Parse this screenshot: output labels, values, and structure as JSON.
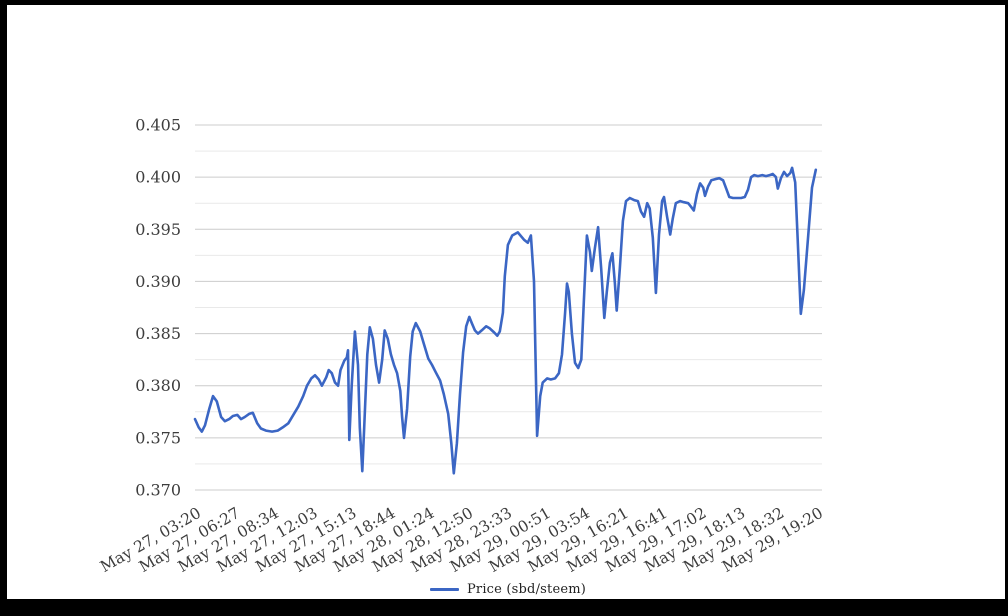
{
  "frame": {
    "color": "#000000",
    "background": "#ffffff"
  },
  "legend": {
    "label": "Price (sbd/steem)",
    "swatch_color": "#3b66c4"
  },
  "chart_data": {
    "type": "line",
    "title": "",
    "xlabel": "",
    "ylabel": "",
    "legend_position": "bottom",
    "grid": {
      "on": true,
      "major_color": "#cccccc",
      "minor_color": "#e9e9e9",
      "minor_midpoints": true
    },
    "axis_text_color": "#3d3d3d",
    "ylim": [
      0.37,
      0.405
    ],
    "y_tick_values": [
      0.405,
      0.4,
      0.395,
      0.39,
      0.385,
      0.38,
      0.375,
      0.37
    ],
    "y_tick_labels": [
      "0.405",
      "0.400",
      "0.395",
      "0.390",
      "0.385",
      "0.380",
      "0.375",
      "0.370"
    ],
    "x_tick_labels": [
      "May 27, 03:20",
      "May 27, 06:27",
      "May 27, 08:34",
      "May 27, 12:03",
      "May 27, 15:13",
      "May 27, 18:44",
      "May 28, 01:24",
      "May 28, 12:50",
      "May 28, 23:33",
      "May 29, 00:51",
      "May 29, 03:54",
      "May 29, 16:21",
      "May 29, 16:41",
      "May 29, 17:02",
      "May 29, 18:13",
      "May 29, 18:32",
      "May 29, 19:20"
    ],
    "series": [
      {
        "name": "Price (sbd/steem)",
        "color": "#3b66c4",
        "points": [
          [
            0.0,
            0.3768
          ],
          [
            0.006,
            0.376
          ],
          [
            0.011,
            0.3756
          ],
          [
            0.016,
            0.3762
          ],
          [
            0.023,
            0.3778
          ],
          [
            0.029,
            0.379
          ],
          [
            0.035,
            0.3785
          ],
          [
            0.042,
            0.377
          ],
          [
            0.048,
            0.3766
          ],
          [
            0.055,
            0.3768
          ],
          [
            0.061,
            0.3771
          ],
          [
            0.068,
            0.3772
          ],
          [
            0.074,
            0.3768
          ],
          [
            0.08,
            0.377
          ],
          [
            0.087,
            0.3773
          ],
          [
            0.093,
            0.3774
          ],
          [
            0.1,
            0.3764
          ],
          [
            0.106,
            0.3759
          ],
          [
            0.114,
            0.3757
          ],
          [
            0.124,
            0.3756
          ],
          [
            0.133,
            0.3757
          ],
          [
            0.141,
            0.376
          ],
          [
            0.15,
            0.3764
          ],
          [
            0.158,
            0.3772
          ],
          [
            0.166,
            0.378
          ],
          [
            0.174,
            0.379
          ],
          [
            0.18,
            0.38
          ],
          [
            0.187,
            0.3807
          ],
          [
            0.193,
            0.381
          ],
          [
            0.199,
            0.3806
          ],
          [
            0.204,
            0.38
          ],
          [
            0.211,
            0.3808
          ],
          [
            0.215,
            0.3815
          ],
          [
            0.22,
            0.3812
          ],
          [
            0.225,
            0.3803
          ],
          [
            0.23,
            0.38
          ],
          [
            0.234,
            0.3815
          ],
          [
            0.24,
            0.3824
          ],
          [
            0.244,
            0.3827
          ],
          [
            0.246,
            0.3834
          ],
          [
            0.248,
            0.3748
          ],
          [
            0.252,
            0.38
          ],
          [
            0.257,
            0.3852
          ],
          [
            0.262,
            0.382
          ],
          [
            0.265,
            0.376
          ],
          [
            0.269,
            0.3718
          ],
          [
            0.272,
            0.376
          ],
          [
            0.277,
            0.383
          ],
          [
            0.281,
            0.3856
          ],
          [
            0.286,
            0.3845
          ],
          [
            0.291,
            0.382
          ],
          [
            0.296,
            0.3803
          ],
          [
            0.301,
            0.3825
          ],
          [
            0.305,
            0.3853
          ],
          [
            0.31,
            0.3845
          ],
          [
            0.315,
            0.383
          ],
          [
            0.32,
            0.382
          ],
          [
            0.325,
            0.3812
          ],
          [
            0.33,
            0.3795
          ],
          [
            0.333,
            0.377
          ],
          [
            0.336,
            0.375
          ],
          [
            0.341,
            0.3778
          ],
          [
            0.346,
            0.3828
          ],
          [
            0.35,
            0.3852
          ],
          [
            0.355,
            0.386
          ],
          [
            0.362,
            0.3852
          ],
          [
            0.368,
            0.384
          ],
          [
            0.375,
            0.3826
          ],
          [
            0.381,
            0.382
          ],
          [
            0.387,
            0.3813
          ],
          [
            0.394,
            0.3805
          ],
          [
            0.4,
            0.3792
          ],
          [
            0.407,
            0.3773
          ],
          [
            0.412,
            0.3745
          ],
          [
            0.416,
            0.3716
          ],
          [
            0.421,
            0.3745
          ],
          [
            0.426,
            0.3792
          ],
          [
            0.431,
            0.3832
          ],
          [
            0.436,
            0.3857
          ],
          [
            0.441,
            0.3866
          ],
          [
            0.445,
            0.386
          ],
          [
            0.45,
            0.3853
          ],
          [
            0.455,
            0.385
          ],
          [
            0.461,
            0.3853
          ],
          [
            0.468,
            0.3857
          ],
          [
            0.474,
            0.3855
          ],
          [
            0.481,
            0.3851
          ],
          [
            0.486,
            0.3848
          ],
          [
            0.49,
            0.3852
          ],
          [
            0.495,
            0.387
          ],
          [
            0.498,
            0.3905
          ],
          [
            0.503,
            0.3935
          ],
          [
            0.51,
            0.3944
          ],
          [
            0.519,
            0.3947
          ],
          [
            0.529,
            0.394
          ],
          [
            0.535,
            0.3937
          ],
          [
            0.54,
            0.3944
          ],
          [
            0.545,
            0.39
          ],
          [
            0.55,
            0.3752
          ],
          [
            0.555,
            0.379
          ],
          [
            0.559,
            0.3803
          ],
          [
            0.566,
            0.3807
          ],
          [
            0.572,
            0.3806
          ],
          [
            0.579,
            0.3807
          ],
          [
            0.585,
            0.3812
          ],
          [
            0.59,
            0.383
          ],
          [
            0.595,
            0.387
          ],
          [
            0.598,
            0.3898
          ],
          [
            0.601,
            0.389
          ],
          [
            0.606,
            0.385
          ],
          [
            0.611,
            0.3822
          ],
          [
            0.616,
            0.3817
          ],
          [
            0.621,
            0.3825
          ],
          [
            0.625,
            0.388
          ],
          [
            0.63,
            0.3944
          ],
          [
            0.635,
            0.3928
          ],
          [
            0.638,
            0.391
          ],
          [
            0.643,
            0.3932
          ],
          [
            0.648,
            0.3952
          ],
          [
            0.653,
            0.3912
          ],
          [
            0.658,
            0.3865
          ],
          [
            0.662,
            0.389
          ],
          [
            0.667,
            0.3918
          ],
          [
            0.671,
            0.3927
          ],
          [
            0.675,
            0.3898
          ],
          [
            0.678,
            0.3872
          ],
          [
            0.683,
            0.3912
          ],
          [
            0.688,
            0.3958
          ],
          [
            0.693,
            0.3977
          ],
          [
            0.699,
            0.398
          ],
          [
            0.706,
            0.3978
          ],
          [
            0.712,
            0.3977
          ],
          [
            0.717,
            0.3967
          ],
          [
            0.722,
            0.3962
          ],
          [
            0.727,
            0.3975
          ],
          [
            0.731,
            0.397
          ],
          [
            0.736,
            0.3942
          ],
          [
            0.741,
            0.3889
          ],
          [
            0.746,
            0.3945
          ],
          [
            0.751,
            0.3977
          ],
          [
            0.754,
            0.3981
          ],
          [
            0.759,
            0.3962
          ],
          [
            0.764,
            0.3945
          ],
          [
            0.768,
            0.396
          ],
          [
            0.773,
            0.3975
          ],
          [
            0.78,
            0.3977
          ],
          [
            0.786,
            0.3976
          ],
          [
            0.793,
            0.3975
          ],
          [
            0.797,
            0.3972
          ],
          [
            0.802,
            0.3968
          ],
          [
            0.807,
            0.3984
          ],
          [
            0.812,
            0.3994
          ],
          [
            0.817,
            0.399
          ],
          [
            0.82,
            0.3982
          ],
          [
            0.825,
            0.3991
          ],
          [
            0.83,
            0.3997
          ],
          [
            0.836,
            0.3998
          ],
          [
            0.843,
            0.3999
          ],
          [
            0.849,
            0.3997
          ],
          [
            0.854,
            0.3989
          ],
          [
            0.859,
            0.3981
          ],
          [
            0.865,
            0.398
          ],
          [
            0.871,
            0.398
          ],
          [
            0.878,
            0.398
          ],
          [
            0.884,
            0.3981
          ],
          [
            0.889,
            0.3988
          ],
          [
            0.894,
            0.4
          ],
          [
            0.899,
            0.4002
          ],
          [
            0.905,
            0.4001
          ],
          [
            0.912,
            0.4002
          ],
          [
            0.918,
            0.4001
          ],
          [
            0.924,
            0.4002
          ],
          [
            0.929,
            0.4003
          ],
          [
            0.934,
            0.4
          ],
          [
            0.937,
            0.3989
          ],
          [
            0.942,
            0.3999
          ],
          [
            0.947,
            0.4005
          ],
          [
            0.952,
            0.4001
          ],
          [
            0.957,
            0.4004
          ],
          [
            0.96,
            0.4009
          ],
          [
            0.965,
            0.3995
          ],
          [
            0.969,
            0.394
          ],
          [
            0.974,
            0.3869
          ],
          [
            0.979,
            0.3892
          ],
          [
            0.986,
            0.3945
          ],
          [
            0.992,
            0.399
          ],
          [
            0.998,
            0.4007
          ]
        ]
      }
    ]
  }
}
